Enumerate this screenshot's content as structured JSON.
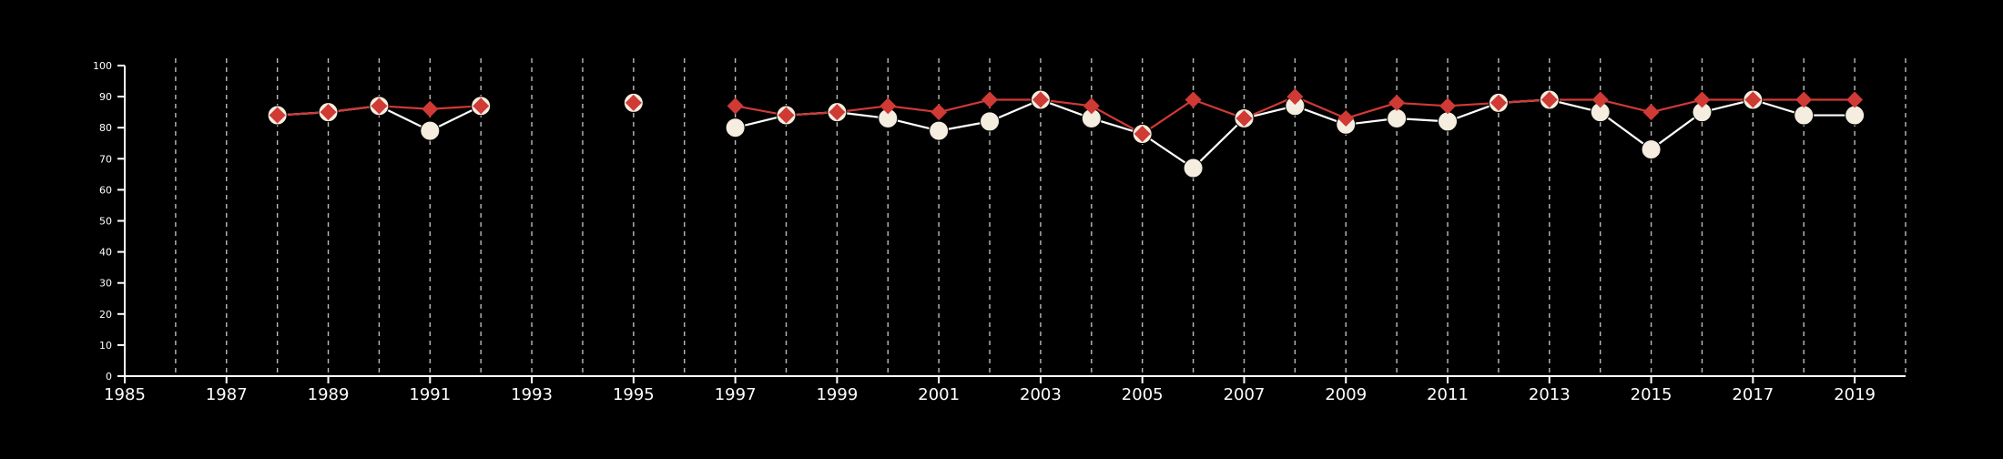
{
  "colors": {
    "background": "#000000",
    "axis": "#ffffff",
    "grid": "#bdbdbd",
    "series_white_line": "#ffffff",
    "series_white_marker": "#f5eee0",
    "series_red": "#d03a35"
  },
  "chart_data": {
    "type": "line",
    "title": "",
    "xlabel": "",
    "ylabel": "",
    "xlim": [
      1985,
      2020
    ],
    "ylim": [
      0,
      100
    ],
    "x_ticks": [
      1985,
      1987,
      1989,
      1991,
      1993,
      1995,
      1997,
      1999,
      2001,
      2003,
      2005,
      2007,
      2009,
      2011,
      2013,
      2015,
      2017,
      2019
    ],
    "y_ticks": [
      0,
      10,
      20,
      30,
      40,
      50,
      60,
      70,
      80,
      90,
      100
    ],
    "vertical_grid_years": [
      1986,
      1987,
      1988,
      1989,
      1990,
      1991,
      1992,
      1993,
      1994,
      1995,
      1996,
      1997,
      1998,
      1999,
      2000,
      2001,
      2002,
      2003,
      2004,
      2005,
      2006,
      2007,
      2008,
      2009,
      2010,
      2011,
      2012,
      2013,
      2014,
      2015,
      2016,
      2017,
      2018,
      2019,
      2020
    ],
    "grid": "vertical dashed",
    "legend": "none",
    "series": [
      {
        "marker": "circle",
        "points": [
          [
            1988,
            84
          ],
          [
            1989,
            85
          ],
          [
            1990,
            87
          ],
          [
            1991,
            79
          ],
          [
            1992,
            87
          ],
          [
            1995,
            88
          ],
          [
            1997,
            80
          ],
          [
            1998,
            84
          ],
          [
            1999,
            85
          ],
          [
            2000,
            83
          ],
          [
            2001,
            79
          ],
          [
            2002,
            82
          ],
          [
            2003,
            89
          ],
          [
            2004,
            83
          ],
          [
            2005,
            78
          ],
          [
            2006,
            67
          ],
          [
            2007,
            83
          ],
          [
            2008,
            87
          ],
          [
            2009,
            81
          ],
          [
            2010,
            83
          ],
          [
            2011,
            82
          ],
          [
            2012,
            88
          ],
          [
            2013,
            89
          ],
          [
            2014,
            85
          ],
          [
            2015,
            73
          ],
          [
            2016,
            85
          ],
          [
            2017,
            89
          ],
          [
            2018,
            84
          ],
          [
            2019,
            84
          ]
        ]
      },
      {
        "marker": "diamond",
        "points": [
          [
            1988,
            84
          ],
          [
            1989,
            85
          ],
          [
            1990,
            87
          ],
          [
            1991,
            86
          ],
          [
            1992,
            87
          ],
          [
            1995,
            88
          ],
          [
            1997,
            87
          ],
          [
            1998,
            84
          ],
          [
            1999,
            85
          ],
          [
            2000,
            87
          ],
          [
            2001,
            85
          ],
          [
            2002,
            89
          ],
          [
            2003,
            89
          ],
          [
            2004,
            87
          ],
          [
            2005,
            78
          ],
          [
            2006,
            89
          ],
          [
            2007,
            83
          ],
          [
            2008,
            90
          ],
          [
            2009,
            83
          ],
          [
            2010,
            88
          ],
          [
            2011,
            87
          ],
          [
            2012,
            88
          ],
          [
            2013,
            89
          ],
          [
            2014,
            89
          ],
          [
            2015,
            85
          ],
          [
            2016,
            89
          ],
          [
            2017,
            89
          ],
          [
            2018,
            89
          ],
          [
            2019,
            89
          ]
        ]
      }
    ]
  }
}
